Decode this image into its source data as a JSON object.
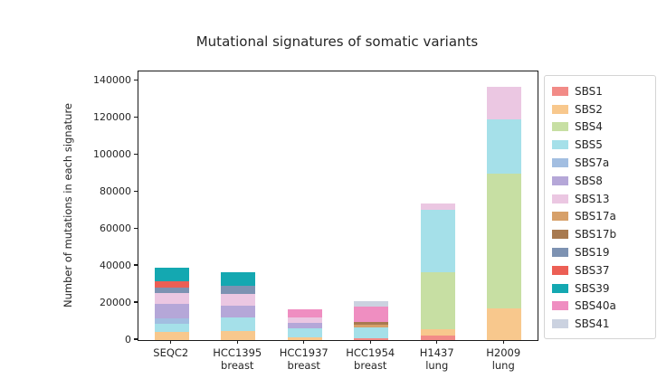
{
  "chart_data": {
    "type": "bar",
    "stacked": true,
    "title": "Mutational signatures of somatic variants",
    "ylabel": "Number of mutations in each signature",
    "xlabel": "",
    "ylim": [
      0,
      145000
    ],
    "yticks": [
      0,
      20000,
      40000,
      60000,
      80000,
      100000,
      120000,
      140000
    ],
    "grid": false,
    "legend_position": "right",
    "categories": [
      {
        "lines": [
          "SEQC2"
        ]
      },
      {
        "lines": [
          "HCC1395",
          "breast"
        ]
      },
      {
        "lines": [
          "HCC1937",
          "breast"
        ]
      },
      {
        "lines": [
          "HCC1954",
          "breast"
        ]
      },
      {
        "lines": [
          "H1437",
          "lung"
        ]
      },
      {
        "lines": [
          "H2009",
          "lung"
        ]
      }
    ],
    "series": [
      {
        "name": "SBS1",
        "color": "#F28B87",
        "values": [
          0,
          0,
          0,
          1200,
          2400,
          0
        ]
      },
      {
        "name": "SBS2",
        "color": "#F8C88D",
        "values": [
          4200,
          5000,
          1700,
          0,
          3300,
          17000
        ]
      },
      {
        "name": "SBS4",
        "color": "#C7DFA3",
        "values": [
          0,
          0,
          0,
          0,
          30800,
          73000
        ]
      },
      {
        "name": "SBS5",
        "color": "#A5E0E9",
        "values": [
          4500,
          7000,
          4600,
          5800,
          33700,
          29000
        ]
      },
      {
        "name": "SBS7a",
        "color": "#A2BEE1",
        "values": [
          2800,
          0,
          0,
          0,
          0,
          0
        ]
      },
      {
        "name": "SBS8",
        "color": "#B5A7D8",
        "values": [
          7800,
          6500,
          2900,
          0,
          0,
          0
        ]
      },
      {
        "name": "SBS13",
        "color": "#EBC7E2",
        "values": [
          6200,
          6500,
          2800,
          0,
          3300,
          17500
        ]
      },
      {
        "name": "SBS17a",
        "color": "#D7A069",
        "values": [
          0,
          0,
          0,
          1400,
          0,
          0
        ]
      },
      {
        "name": "SBS17b",
        "color": "#A87A50",
        "values": [
          0,
          0,
          0,
          1500,
          0,
          0
        ]
      },
      {
        "name": "SBS19",
        "color": "#7D92B2",
        "values": [
          3000,
          4500,
          0,
          0,
          0,
          0
        ]
      },
      {
        "name": "SBS37",
        "color": "#EC5F55",
        "values": [
          3300,
          0,
          0,
          0,
          0,
          0
        ]
      },
      {
        "name": "SBS39",
        "color": "#14A8B1",
        "values": [
          7200,
          7300,
          0,
          0,
          0,
          0
        ]
      },
      {
        "name": "SBS40a",
        "color": "#EF8EC1",
        "values": [
          0,
          0,
          4500,
          8000,
          0,
          0
        ]
      },
      {
        "name": "SBS41",
        "color": "#CBD2E0",
        "values": [
          0,
          0,
          0,
          3000,
          0,
          0
        ]
      }
    ]
  }
}
